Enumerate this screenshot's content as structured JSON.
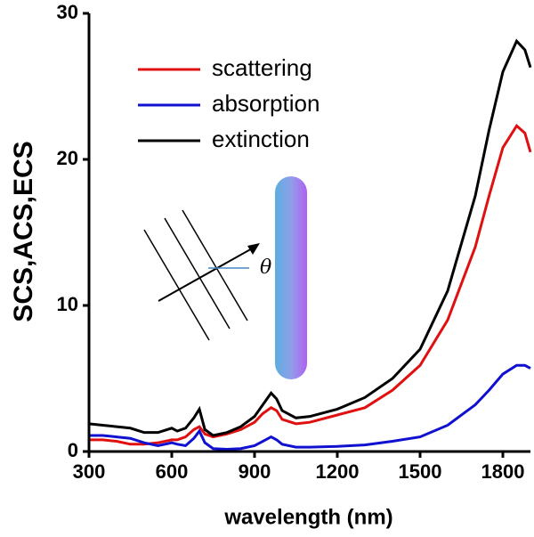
{
  "chart_data": {
    "type": "line",
    "xlabel": "wavelength (nm)",
    "ylabel": "SCS,ACS,ECS",
    "annotation": "θ",
    "x": [
      300,
      350,
      400,
      450,
      500,
      550,
      600,
      620,
      650,
      680,
      700,
      720,
      750,
      800,
      850,
      900,
      930,
      960,
      980,
      1000,
      1050,
      1100,
      1200,
      1300,
      1400,
      1500,
      1600,
      1700,
      1750,
      1800,
      1850,
      1880,
      1900
    ],
    "series": [
      {
        "name": "scattering",
        "color": "#e01010",
        "values": [
          0.8,
          0.8,
          0.7,
          0.5,
          0.5,
          0.6,
          0.8,
          0.8,
          1.0,
          1.5,
          1.7,
          1.2,
          1.0,
          1.2,
          1.5,
          2.0,
          2.6,
          3.0,
          2.8,
          2.2,
          1.9,
          2.0,
          2.5,
          3.0,
          4.2,
          5.9,
          9.0,
          14.0,
          17.5,
          20.8,
          22.3,
          21.8,
          20.5
        ]
      },
      {
        "name": "absorption",
        "color": "#1010d0",
        "values": [
          1.1,
          1.1,
          1.0,
          0.9,
          0.6,
          0.4,
          0.6,
          0.5,
          0.4,
          0.9,
          1.4,
          0.6,
          0.2,
          0.15,
          0.2,
          0.4,
          0.7,
          1.0,
          0.8,
          0.5,
          0.3,
          0.3,
          0.35,
          0.45,
          0.7,
          1.0,
          1.8,
          3.2,
          4.2,
          5.3,
          5.9,
          5.9,
          5.7
        ]
      },
      {
        "name": "extinction",
        "color": "#000000",
        "values": [
          1.9,
          1.8,
          1.7,
          1.6,
          1.3,
          1.3,
          1.6,
          1.4,
          1.6,
          2.3,
          2.9,
          1.5,
          1.1,
          1.3,
          1.7,
          2.4,
          3.2,
          4.0,
          3.6,
          2.8,
          2.3,
          2.4,
          2.9,
          3.7,
          5.0,
          7.0,
          11.0,
          17.5,
          22.0,
          26.0,
          28.1,
          27.5,
          26.3
        ]
      }
    ],
    "xlim": [
      300,
      1900
    ],
    "ylim": [
      0,
      30
    ],
    "xticks": [
      300,
      600,
      900,
      1200,
      1500,
      1800
    ],
    "yticks": [
      0,
      10,
      20,
      30
    ],
    "legend": "upper left"
  }
}
